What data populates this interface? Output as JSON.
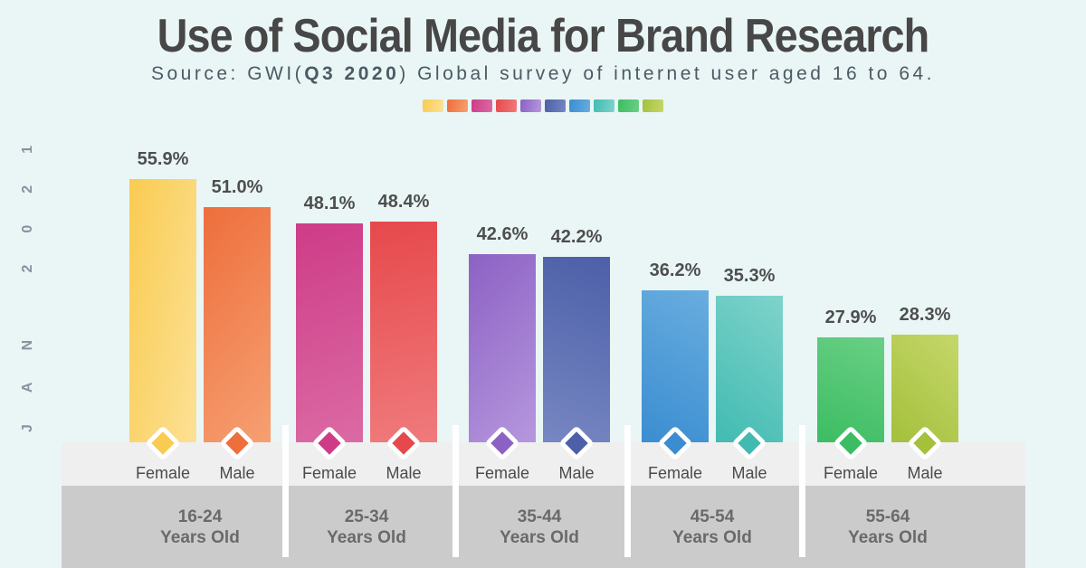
{
  "page": {
    "background": "#E9F6F5"
  },
  "header": {
    "title": "Use of Social Media for Brand Research",
    "source_prefix": "Source: GWI(",
    "source_bold": "Q3 2020",
    "source_suffix": ") Global survey of internet user aged 16 to 64."
  },
  "side_label": "JAN 2021",
  "chart_data": {
    "type": "bar",
    "title": "Use of Social Media for Brand Research",
    "source_note": "Source: GWI(Q3 2020) Global survey of internet user aged 16 to 64.",
    "unit": "%",
    "categories": [
      "16-24",
      "25-34",
      "35-44",
      "45-54",
      "55-64"
    ],
    "category_suffix": "Years Old",
    "series": [
      {
        "name": "Female",
        "values": [
          55.9,
          48.1,
          42.6,
          36.2,
          27.9
        ],
        "colors": [
          [
            "#F9CB51",
            "#FCE195"
          ],
          [
            "#CE3C87",
            "#DB6AA4"
          ],
          [
            "#8C61C4",
            "#B697DE"
          ],
          [
            "#3B8DD1",
            "#68ADDF"
          ],
          [
            "#3CBD62",
            "#69CF85"
          ]
        ]
      },
      {
        "name": "Male",
        "values": [
          51.0,
          48.4,
          42.2,
          35.3,
          28.3
        ],
        "colors": [
          [
            "#EE6E3C",
            "#F6A072"
          ],
          [
            "#E6494C",
            "#F07A7C"
          ],
          [
            "#4C5FA8",
            "#7787C2"
          ],
          [
            "#41BBB2",
            "#7FD3CB"
          ],
          [
            "#A4C03C",
            "#C5D76A"
          ]
        ]
      }
    ],
    "value_labels": [
      [
        "55.9%",
        "48.1%",
        "42.6%",
        "36.2%",
        "27.9%"
      ],
      [
        "51.0%",
        "48.4%",
        "42.2%",
        "35.3%",
        "28.3%"
      ]
    ],
    "ylim": [
      0,
      60
    ],
    "grid": false,
    "legend_position": "top-center"
  },
  "colors": {
    "background": "#E9F6F5",
    "band_light": "#F0EFEF",
    "band_dark": "#CCCBCB",
    "separator": "#FFFFFF",
    "title_text": "#474747",
    "subtitle_text": "#4C5A64",
    "value_text": "#4E4E4E",
    "gender_text": "#4B4B4B",
    "category_text": "#6A6A6A",
    "side_text": "#8694A0"
  }
}
